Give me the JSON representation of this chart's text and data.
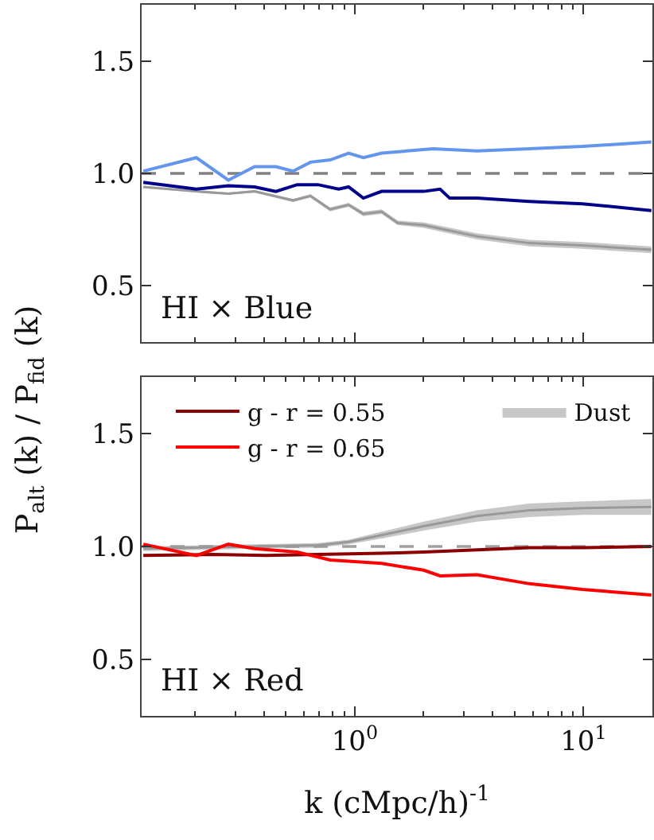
{
  "chart_data": [
    {
      "type": "line",
      "ylabel": "P$_{alt}$ (k) / P$_{fid}$ (k)",
      "annotations": [
        "HI × Blue"
      ],
      "log": "x",
      "xlim": [
        0.117,
        20
      ],
      "ylim": [
        0.25,
        1.75
      ],
      "xticks": [
        {
          "value": 1,
          "label": "10$^{0}$"
        },
        {
          "value": 10,
          "label": "10$^{1}$"
        },
        {
          "value": 0.2,
          "label": null
        },
        {
          "value": 0.3,
          "label": null
        },
        {
          "value": 0.4,
          "label": null
        },
        {
          "value": 0.5,
          "label": null
        },
        {
          "value": 0.6,
          "label": null
        },
        {
          "value": 0.7,
          "label": null
        },
        {
          "value": 0.8,
          "label": null
        },
        {
          "value": 0.9,
          "label": null
        },
        {
          "value": 2,
          "label": null
        },
        {
          "value": 3,
          "label": null
        },
        {
          "value": 4,
          "label": null
        },
        {
          "value": 5,
          "label": null
        },
        {
          "value": 6,
          "label": null
        },
        {
          "value": 7,
          "label": null
        },
        {
          "value": 8,
          "label": null
        },
        {
          "value": 9,
          "label": null
        }
      ],
      "yticks": [
        {
          "value": 0.5,
          "label": "0.5"
        },
        {
          "value": 1,
          "label": "1.0"
        },
        {
          "value": 1.5,
          "label": "1.5"
        }
      ],
      "tick_labels": "y",
      "grid": false,
      "ref_lines": [
        {
          "axis": "y",
          "value": 1,
          "color": "#808080",
          "line_style": "dashed"
        }
      ],
      "series": [
        {
          "color": "#999999",
          "x": [
            0.119,
            0.203,
            0.28,
            0.365,
            0.537,
            0.64,
            0.78,
            0.94,
            1.09,
            1.31,
            1.54,
            2.0,
            3.42,
            5.8,
            9.9,
            19.8
          ],
          "values": [
            0.94,
            0.92,
            0.91,
            0.92,
            0.88,
            0.9,
            0.84,
            0.86,
            0.82,
            0.83,
            0.78,
            0.77,
            0.72,
            0.69,
            0.68,
            0.66
          ],
          "lower": [
            0.935,
            0.915,
            0.905,
            0.914,
            0.873,
            0.892,
            0.831,
            0.851,
            0.81,
            0.82,
            0.77,
            0.758,
            0.706,
            0.675,
            0.665,
            0.645
          ],
          "upper": [
            0.945,
            0.925,
            0.915,
            0.926,
            0.887,
            0.908,
            0.849,
            0.869,
            0.83,
            0.84,
            0.79,
            0.782,
            0.734,
            0.705,
            0.695,
            0.675
          ]
        },
        {
          "color": "#6495ed",
          "x": [
            0.119,
            0.203,
            0.28,
            0.365,
            0.452,
            0.537,
            0.64,
            0.78,
            0.94,
            1.09,
            1.31,
            2.2,
            3.42,
            5.8,
            9.9,
            19.8
          ],
          "values": [
            1.01,
            1.07,
            0.97,
            1.03,
            1.03,
            1.01,
            1.05,
            1.06,
            1.09,
            1.07,
            1.09,
            1.11,
            1.1,
            1.11,
            1.12,
            1.14
          ]
        },
        {
          "color": "#00008b",
          "x": [
            0.119,
            0.203,
            0.28,
            0.365,
            0.452,
            0.56,
            0.69,
            0.85,
            0.94,
            1.09,
            1.31,
            2.0,
            2.36,
            2.6,
            3.42,
            5.8,
            9.9,
            19.8
          ],
          "values": [
            0.96,
            0.93,
            0.945,
            0.94,
            0.92,
            0.95,
            0.95,
            0.93,
            0.94,
            0.89,
            0.92,
            0.92,
            0.93,
            0.89,
            0.89,
            0.875,
            0.865,
            0.835
          ]
        }
      ]
    },
    {
      "type": "line",
      "xlabel": "k (cMpc/h)$^{-1}$",
      "annotations": [
        "HI × Red"
      ],
      "log": "x",
      "xlim": [
        0.117,
        20
      ],
      "ylim": [
        0.25,
        1.75
      ],
      "legend": "top",
      "xticks": [
        {
          "value": 1,
          "label": "10$^{0}$"
        },
        {
          "value": 10,
          "label": "10$^{1}$"
        },
        {
          "value": 0.2,
          "label": null
        },
        {
          "value": 0.3,
          "label": null
        },
        {
          "value": 0.4,
          "label": null
        },
        {
          "value": 0.5,
          "label": null
        },
        {
          "value": 0.6,
          "label": null
        },
        {
          "value": 0.7,
          "label": null
        },
        {
          "value": 0.8,
          "label": null
        },
        {
          "value": 0.9,
          "label": null
        },
        {
          "value": 2,
          "label": null
        },
        {
          "value": 3,
          "label": null
        },
        {
          "value": 4,
          "label": null
        },
        {
          "value": 5,
          "label": null
        },
        {
          "value": 6,
          "label": null
        },
        {
          "value": 7,
          "label": null
        },
        {
          "value": 8,
          "label": null
        },
        {
          "value": 9,
          "label": null
        }
      ],
      "yticks": [
        {
          "value": 0.5,
          "label": "0.5"
        },
        {
          "value": 1,
          "label": "1.0"
        },
        {
          "value": 1.5,
          "label": "1.5"
        }
      ],
      "grid": false,
      "ref_lines": [
        {
          "axis": "y",
          "value": 1,
          "color": "#a0a0a0",
          "line_style": "dashed"
        }
      ],
      "series": [
        {
          "name": "Dust",
          "color": "#999999",
          "x": [
            0.119,
            0.365,
            0.69,
            0.94,
            1.31,
            2.0,
            3.42,
            5.8,
            9.9,
            19.8
          ],
          "values": [
            0.99,
            1.0,
            1.005,
            1.02,
            1.05,
            1.09,
            1.135,
            1.16,
            1.17,
            1.175
          ],
          "lower": [
            0.98,
            0.99,
            0.995,
            1.01,
            1.035,
            1.07,
            1.11,
            1.13,
            1.14,
            1.14
          ],
          "upper": [
            1.0,
            1.01,
            1.015,
            1.03,
            1.065,
            1.11,
            1.16,
            1.19,
            1.2,
            1.21
          ]
        },
        {
          "name": "g - r = 0.55",
          "color": "#8b0000",
          "x": [
            0.119,
            0.24,
            0.41,
            0.69,
            1.31,
            2.0,
            3.42,
            5.8,
            9.9,
            19.8
          ],
          "values": [
            0.96,
            0.965,
            0.96,
            0.965,
            0.97,
            0.975,
            0.985,
            0.995,
            0.995,
            1.0
          ]
        },
        {
          "name": "g - r = 0.65",
          "color": "#ff0000",
          "x": [
            0.119,
            0.203,
            0.28,
            0.365,
            0.56,
            0.78,
            1.31,
            2.0,
            2.36,
            3.42,
            5.8,
            9.9,
            19.8
          ],
          "values": [
            1.01,
            0.96,
            1.01,
            0.99,
            0.975,
            0.94,
            0.925,
            0.895,
            0.87,
            0.875,
            0.835,
            0.81,
            0.785
          ]
        }
      ]
    }
  ]
}
